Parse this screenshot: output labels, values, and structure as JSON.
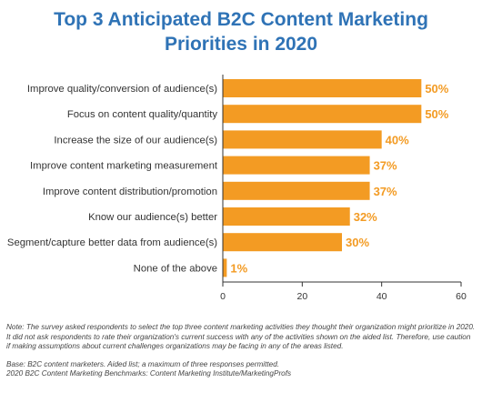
{
  "chart_data": {
    "type": "bar",
    "orientation": "horizontal",
    "title_lines": [
      "Top 3 Anticipated B2C Content Marketing",
      "Priorities in 2020"
    ],
    "categories": [
      "Improve quality/conversion of audience(s)",
      "Focus on content quality/quantity",
      "Increase the size of our audience(s)",
      "Improve content marketing measurement",
      "Improve content distribution/promotion",
      "Know our audience(s) better",
      "Segment/capture better data from audience(s)",
      "None of the above"
    ],
    "values": [
      50,
      50,
      40,
      37,
      37,
      32,
      30,
      1
    ],
    "value_labels": [
      "50%",
      "50%",
      "40%",
      "37%",
      "37%",
      "32%",
      "30%",
      "1%"
    ],
    "xlim": [
      0,
      60
    ],
    "xticks": [
      "0",
      "20",
      "40",
      "60"
    ],
    "grid": false,
    "bar_color": "#f39b23",
    "label_color": "#f39b23"
  },
  "notes": {
    "note": "Note: The survey asked respondents to select the top three content marketing activities they thought their organization might prioritize in 2020. It did not ask respondents to rate their organization's current success with any of the activities shown on the aided list. Therefore, use caution if making assumptions about current challenges organizations may be facing in any of the areas listed.",
    "base": "Base: B2C content marketers. Aided list; a maximum of three responses permitted.",
    "source": "2020 B2C Content Marketing Benchmarks: Content Marketing Institute/MarketingProfs"
  }
}
